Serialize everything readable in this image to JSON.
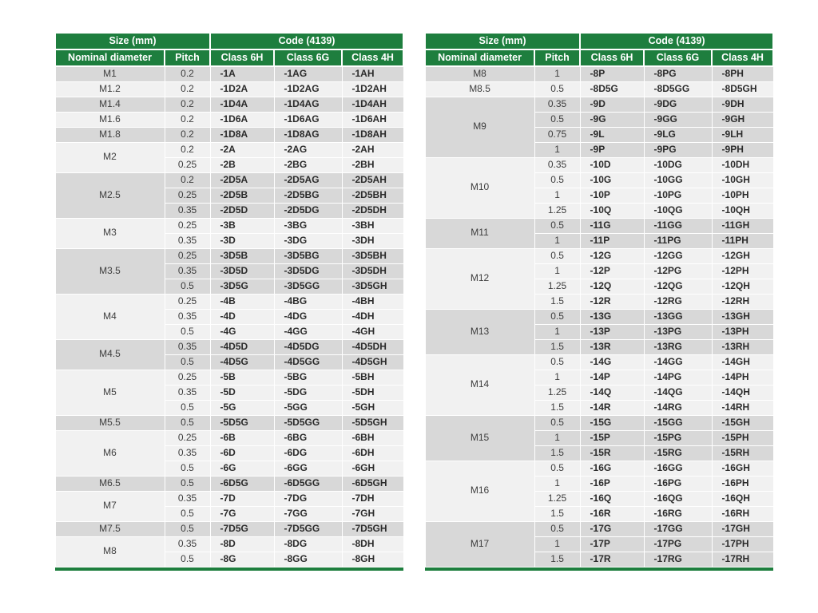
{
  "colors": {
    "header_green": "#1e7e3e",
    "row_dark": "#d8d8d8",
    "row_light": "#f1f1f1",
    "header_text": "#ffffff",
    "body_text": "#3d3d3d"
  },
  "header": {
    "size_group": "Size (mm)",
    "code_group": "Code (4139)",
    "columns": [
      "Nominal diameter",
      "Pitch",
      "Class 6H",
      "Class 6G",
      "Class 4H"
    ]
  },
  "tables": [
    {
      "groups": [
        {
          "diameter": "M1",
          "rows": [
            {
              "pitch": "0.2",
              "class_6h": "-1A",
              "class_6g": "-1AG",
              "class_4h": "-1AH"
            }
          ]
        },
        {
          "diameter": "M1.2",
          "rows": [
            {
              "pitch": "0.2",
              "class_6h": "-1D2A",
              "class_6g": "-1D2AG",
              "class_4h": "-1D2AH"
            }
          ]
        },
        {
          "diameter": "M1.4",
          "rows": [
            {
              "pitch": "0.2",
              "class_6h": "-1D4A",
              "class_6g": "-1D4AG",
              "class_4h": "-1D4AH"
            }
          ]
        },
        {
          "diameter": "M1.6",
          "rows": [
            {
              "pitch": "0.2",
              "class_6h": "-1D6A",
              "class_6g": "-1D6AG",
              "class_4h": "-1D6AH"
            }
          ]
        },
        {
          "diameter": "M1.8",
          "rows": [
            {
              "pitch": "0.2",
              "class_6h": "-1D8A",
              "class_6g": "-1D8AG",
              "class_4h": "-1D8AH"
            }
          ]
        },
        {
          "diameter": "M2",
          "rows": [
            {
              "pitch": "0.2",
              "class_6h": "-2A",
              "class_6g": "-2AG",
              "class_4h": "-2AH"
            },
            {
              "pitch": "0.25",
              "class_6h": "-2B",
              "class_6g": "-2BG",
              "class_4h": "-2BH"
            }
          ]
        },
        {
          "diameter": "M2.5",
          "rows": [
            {
              "pitch": "0.2",
              "class_6h": "-2D5A",
              "class_6g": "-2D5AG",
              "class_4h": "-2D5AH"
            },
            {
              "pitch": "0.25",
              "class_6h": "-2D5B",
              "class_6g": "-2D5BG",
              "class_4h": "-2D5BH"
            },
            {
              "pitch": "0.35",
              "class_6h": "-2D5D",
              "class_6g": "-2D5DG",
              "class_4h": "-2D5DH"
            }
          ]
        },
        {
          "diameter": "M3",
          "rows": [
            {
              "pitch": "0.25",
              "class_6h": "-3B",
              "class_6g": "-3BG",
              "class_4h": "-3BH"
            },
            {
              "pitch": "0.35",
              "class_6h": "-3D",
              "class_6g": "-3DG",
              "class_4h": "-3DH"
            }
          ]
        },
        {
          "diameter": "M3.5",
          "rows": [
            {
              "pitch": "0.25",
              "class_6h": "-3D5B",
              "class_6g": "-3D5BG",
              "class_4h": "-3D5BH"
            },
            {
              "pitch": "0.35",
              "class_6h": "-3D5D",
              "class_6g": "-3D5DG",
              "class_4h": "-3D5DH"
            },
            {
              "pitch": "0.5",
              "class_6h": "-3D5G",
              "class_6g": "-3D5GG",
              "class_4h": "-3D5GH"
            }
          ]
        },
        {
          "diameter": "M4",
          "rows": [
            {
              "pitch": "0.25",
              "class_6h": "-4B",
              "class_6g": "-4BG",
              "class_4h": "-4BH"
            },
            {
              "pitch": "0.35",
              "class_6h": "-4D",
              "class_6g": "-4DG",
              "class_4h": "-4DH"
            },
            {
              "pitch": "0.5",
              "class_6h": "-4G",
              "class_6g": "-4GG",
              "class_4h": "-4GH"
            }
          ]
        },
        {
          "diameter": "M4.5",
          "rows": [
            {
              "pitch": "0.35",
              "class_6h": "-4D5D",
              "class_6g": "-4D5DG",
              "class_4h": "-4D5DH"
            },
            {
              "pitch": "0.5",
              "class_6h": "-4D5G",
              "class_6g": "-4D5GG",
              "class_4h": "-4D5GH"
            }
          ]
        },
        {
          "diameter": "M5",
          "rows": [
            {
              "pitch": "0.25",
              "class_6h": "-5B",
              "class_6g": "-5BG",
              "class_4h": "-5BH"
            },
            {
              "pitch": "0.35",
              "class_6h": "-5D",
              "class_6g": "-5DG",
              "class_4h": "-5DH"
            },
            {
              "pitch": "0.5",
              "class_6h": "-5G",
              "class_6g": "-5GG",
              "class_4h": "-5GH"
            }
          ]
        },
        {
          "diameter": "M5.5",
          "rows": [
            {
              "pitch": "0.5",
              "class_6h": "-5D5G",
              "class_6g": "-5D5GG",
              "class_4h": "-5D5GH"
            }
          ]
        },
        {
          "diameter": "M6",
          "rows": [
            {
              "pitch": "0.25",
              "class_6h": "-6B",
              "class_6g": "-6BG",
              "class_4h": "-6BH"
            },
            {
              "pitch": "0.35",
              "class_6h": "-6D",
              "class_6g": "-6DG",
              "class_4h": "-6DH"
            },
            {
              "pitch": "0.5",
              "class_6h": "-6G",
              "class_6g": "-6GG",
              "class_4h": "-6GH"
            }
          ]
        },
        {
          "diameter": "M6.5",
          "rows": [
            {
              "pitch": "0.5",
              "class_6h": "-6D5G",
              "class_6g": "-6D5GG",
              "class_4h": "-6D5GH"
            }
          ]
        },
        {
          "diameter": "M7",
          "rows": [
            {
              "pitch": "0.35",
              "class_6h": "-7D",
              "class_6g": "-7DG",
              "class_4h": "-7DH"
            },
            {
              "pitch": "0.5",
              "class_6h": "-7G",
              "class_6g": "-7GG",
              "class_4h": "-7GH"
            }
          ]
        },
        {
          "diameter": "M7.5",
          "rows": [
            {
              "pitch": "0.5",
              "class_6h": "-7D5G",
              "class_6g": "-7D5GG",
              "class_4h": "-7D5GH"
            }
          ]
        },
        {
          "diameter": "M8",
          "rows": [
            {
              "pitch": "0.35",
              "class_6h": "-8D",
              "class_6g": "-8DG",
              "class_4h": "-8DH"
            },
            {
              "pitch": "0.5",
              "class_6h": "-8G",
              "class_6g": "-8GG",
              "class_4h": "-8GH"
            }
          ]
        }
      ]
    },
    {
      "groups": [
        {
          "diameter": "M8",
          "rows": [
            {
              "pitch": "1",
              "class_6h": "-8P",
              "class_6g": "-8PG",
              "class_4h": "-8PH"
            }
          ]
        },
        {
          "diameter": "M8.5",
          "rows": [
            {
              "pitch": "0.5",
              "class_6h": "-8D5G",
              "class_6g": "-8D5GG",
              "class_4h": "-8D5GH"
            }
          ]
        },
        {
          "diameter": "M9",
          "rows": [
            {
              "pitch": "0.35",
              "class_6h": "-9D",
              "class_6g": "-9DG",
              "class_4h": "-9DH"
            },
            {
              "pitch": "0.5",
              "class_6h": "-9G",
              "class_6g": "-9GG",
              "class_4h": "-9GH"
            },
            {
              "pitch": "0.75",
              "class_6h": "-9L",
              "class_6g": "-9LG",
              "class_4h": "-9LH"
            },
            {
              "pitch": "1",
              "class_6h": "-9P",
              "class_6g": "-9PG",
              "class_4h": "-9PH"
            }
          ]
        },
        {
          "diameter": "M10",
          "rows": [
            {
              "pitch": "0.35",
              "class_6h": "-10D",
              "class_6g": "-10DG",
              "class_4h": "-10DH"
            },
            {
              "pitch": "0.5",
              "class_6h": "-10G",
              "class_6g": "-10GG",
              "class_4h": "-10GH"
            },
            {
              "pitch": "1",
              "class_6h": "-10P",
              "class_6g": "-10PG",
              "class_4h": "-10PH"
            },
            {
              "pitch": "1.25",
              "class_6h": "-10Q",
              "class_6g": "-10QG",
              "class_4h": "-10QH"
            }
          ]
        },
        {
          "diameter": "M11",
          "rows": [
            {
              "pitch": "0.5",
              "class_6h": "-11G",
              "class_6g": "-11GG",
              "class_4h": "-11GH"
            },
            {
              "pitch": "1",
              "class_6h": "-11P",
              "class_6g": "-11PG",
              "class_4h": "-11PH"
            }
          ]
        },
        {
          "diameter": "M12",
          "rows": [
            {
              "pitch": "0.5",
              "class_6h": "-12G",
              "class_6g": "-12GG",
              "class_4h": "-12GH"
            },
            {
              "pitch": "1",
              "class_6h": "-12P",
              "class_6g": "-12PG",
              "class_4h": "-12PH"
            },
            {
              "pitch": "1.25",
              "class_6h": "-12Q",
              "class_6g": "-12QG",
              "class_4h": "-12QH"
            },
            {
              "pitch": "1.5",
              "class_6h": "-12R",
              "class_6g": "-12RG",
              "class_4h": "-12RH"
            }
          ]
        },
        {
          "diameter": "M13",
          "rows": [
            {
              "pitch": "0.5",
              "class_6h": "-13G",
              "class_6g": "-13GG",
              "class_4h": "-13GH"
            },
            {
              "pitch": "1",
              "class_6h": "-13P",
              "class_6g": "-13PG",
              "class_4h": "-13PH"
            },
            {
              "pitch": "1.5",
              "class_6h": "-13R",
              "class_6g": "-13RG",
              "class_4h": "-13RH"
            }
          ]
        },
        {
          "diameter": "M14",
          "rows": [
            {
              "pitch": "0.5",
              "class_6h": "-14G",
              "class_6g": "-14GG",
              "class_4h": "-14GH"
            },
            {
              "pitch": "1",
              "class_6h": "-14P",
              "class_6g": "-14PG",
              "class_4h": "-14PH"
            },
            {
              "pitch": "1.25",
              "class_6h": "-14Q",
              "class_6g": "-14QG",
              "class_4h": "-14QH"
            },
            {
              "pitch": "1.5",
              "class_6h": "-14R",
              "class_6g": "-14RG",
              "class_4h": "-14RH"
            }
          ]
        },
        {
          "diameter": "M15",
          "rows": [
            {
              "pitch": "0.5",
              "class_6h": "-15G",
              "class_6g": "-15GG",
              "class_4h": "-15GH"
            },
            {
              "pitch": "1",
              "class_6h": "-15P",
              "class_6g": "-15PG",
              "class_4h": "-15PH"
            },
            {
              "pitch": "1.5",
              "class_6h": "-15R",
              "class_6g": "-15RG",
              "class_4h": "-15RH"
            }
          ]
        },
        {
          "diameter": "M16",
          "rows": [
            {
              "pitch": "0.5",
              "class_6h": "-16G",
              "class_6g": "-16GG",
              "class_4h": "-16GH"
            },
            {
              "pitch": "1",
              "class_6h": "-16P",
              "class_6g": "-16PG",
              "class_4h": "-16PH"
            },
            {
              "pitch": "1.25",
              "class_6h": "-16Q",
              "class_6g": "-16QG",
              "class_4h": "-16QH"
            },
            {
              "pitch": "1.5",
              "class_6h": "-16R",
              "class_6g": "-16RG",
              "class_4h": "-16RH"
            }
          ]
        },
        {
          "diameter": "M17",
          "rows": [
            {
              "pitch": "0.5",
              "class_6h": "-17G",
              "class_6g": "-17GG",
              "class_4h": "-17GH"
            },
            {
              "pitch": "1",
              "class_6h": "-17P",
              "class_6g": "-17PG",
              "class_4h": "-17PH"
            },
            {
              "pitch": "1.5",
              "class_6h": "-17R",
              "class_6g": "-17RG",
              "class_4h": "-17RH"
            }
          ]
        }
      ]
    }
  ]
}
